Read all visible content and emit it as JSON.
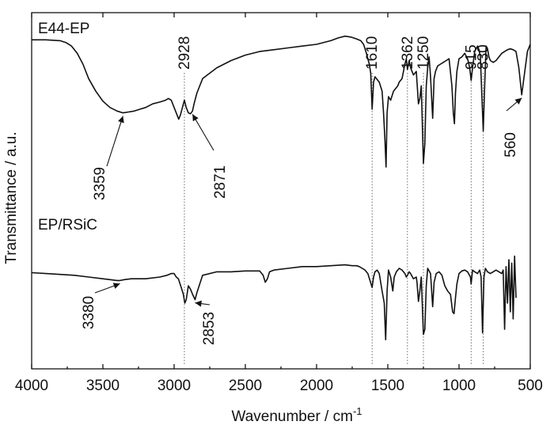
{
  "chart_data": {
    "type": "line",
    "xlabel": "Wavenumber / cm",
    "xlabel_sup": "-1",
    "ylabel": "Transmittance / a.u.",
    "xlim": [
      4000,
      500
    ],
    "x_reversed": true,
    "x_ticks": [
      4000,
      3500,
      3000,
      2500,
      2000,
      1500,
      1000,
      500
    ],
    "ylim": [
      0,
      1
    ],
    "y_ticks_shown": false,
    "series": [
      {
        "name": "E44-EP",
        "x": [
          4000,
          3900,
          3800,
          3760,
          3720,
          3680,
          3640,
          3600,
          3550,
          3500,
          3450,
          3400,
          3359,
          3320,
          3280,
          3240,
          3200,
          3150,
          3100,
          3060,
          3040,
          3020,
          3000,
          2980,
          2968,
          2955,
          2940,
          2928,
          2915,
          2900,
          2885,
          2871,
          2860,
          2840,
          2800,
          2700,
          2600,
          2500,
          2400,
          2300,
          2200,
          2100,
          2000,
          1900,
          1850,
          1800,
          1760,
          1720,
          1690,
          1670,
          1650,
          1630,
          1620,
          1610,
          1600,
          1590,
          1580,
          1560,
          1540,
          1530,
          1520,
          1512,
          1505,
          1495,
          1480,
          1460,
          1440,
          1430,
          1420,
          1400,
          1380,
          1370,
          1362,
          1350,
          1340,
          1320,
          1300,
          1295,
          1285,
          1275,
          1265,
          1250,
          1240,
          1230,
          1220,
          1210,
          1200,
          1185,
          1175,
          1165,
          1150,
          1130,
          1110,
          1090,
          1070,
          1050,
          1040,
          1032,
          1025,
          1015,
          1000,
          980,
          960,
          940,
          925,
          915,
          905,
          890,
          870,
          860,
          850,
          840,
          830,
          820,
          810,
          800,
          790,
          780,
          760,
          740,
          720,
          700,
          680,
          660,
          640,
          620,
          600,
          580,
          560,
          540,
          520,
          500
        ],
        "y": [
          0.955,
          0.955,
          0.95,
          0.94,
          0.92,
          0.88,
          0.82,
          0.74,
          0.67,
          0.615,
          0.58,
          0.56,
          0.55,
          0.555,
          0.56,
          0.57,
          0.58,
          0.6,
          0.61,
          0.62,
          0.63,
          0.62,
          0.58,
          0.54,
          0.515,
          0.54,
          0.585,
          0.62,
          0.58,
          0.55,
          0.545,
          0.56,
          0.6,
          0.66,
          0.74,
          0.8,
          0.84,
          0.87,
          0.89,
          0.9,
          0.91,
          0.92,
          0.93,
          0.95,
          0.965,
          0.975,
          0.97,
          0.96,
          0.95,
          0.93,
          0.88,
          0.82,
          0.77,
          0.57,
          0.72,
          0.75,
          0.74,
          0.72,
          0.67,
          0.55,
          0.4,
          0.25,
          0.55,
          0.64,
          0.62,
          0.67,
          0.69,
          0.7,
          0.72,
          0.74,
          0.82,
          0.85,
          0.79,
          0.84,
          0.8,
          0.76,
          0.78,
          0.72,
          0.6,
          0.63,
          0.7,
          0.27,
          0.38,
          0.7,
          0.8,
          0.86,
          0.75,
          0.52,
          0.74,
          0.78,
          0.81,
          0.82,
          0.83,
          0.84,
          0.85,
          0.7,
          0.55,
          0.49,
          0.66,
          0.78,
          0.85,
          0.86,
          0.88,
          0.85,
          0.8,
          0.73,
          0.8,
          0.89,
          0.92,
          0.9,
          0.86,
          0.65,
          0.45,
          0.7,
          0.92,
          0.905,
          0.86,
          0.84,
          0.83,
          0.84,
          0.86,
          0.88,
          0.89,
          0.9,
          0.905,
          0.9,
          0.89,
          0.8,
          0.65,
          0.77,
          0.89,
          0.93
        ]
      },
      {
        "name": "EP/RSiC",
        "x": [
          4000,
          3900,
          3800,
          3700,
          3600,
          3500,
          3450,
          3400,
          3380,
          3350,
          3300,
          3200,
          3100,
          3050,
          3020,
          3000,
          2985,
          2970,
          2950,
          2935,
          2925,
          2915,
          2900,
          2885,
          2870,
          2853,
          2840,
          2820,
          2800,
          2700,
          2600,
          2500,
          2400,
          2375,
          2360,
          2345,
          2330,
          2300,
          2200,
          2100,
          2000,
          1900,
          1800,
          1750,
          1720,
          1700,
          1680,
          1660,
          1640,
          1625,
          1610,
          1600,
          1590,
          1575,
          1560,
          1540,
          1525,
          1515,
          1510,
          1505,
          1495,
          1480,
          1465,
          1455,
          1440,
          1420,
          1400,
          1380,
          1370,
          1362,
          1350,
          1340,
          1320,
          1300,
          1295,
          1285,
          1275,
          1265,
          1250,
          1240,
          1230,
          1220,
          1200,
          1185,
          1175,
          1160,
          1140,
          1120,
          1100,
          1080,
          1060,
          1045,
          1035,
          1025,
          1015,
          1000,
          980,
          960,
          940,
          920,
          915,
          905,
          890,
          870,
          855,
          845,
          835,
          830,
          825,
          815,
          800,
          780,
          760,
          740,
          720,
          700,
          690,
          680,
          670,
          660,
          650,
          640,
          630,
          620,
          610,
          600
        ],
        "y": [
          0.525,
          0.52,
          0.515,
          0.51,
          0.5,
          0.49,
          0.485,
          0.48,
          0.48,
          0.485,
          0.49,
          0.49,
          0.5,
          0.51,
          0.52,
          0.52,
          0.5,
          0.49,
          0.44,
          0.4,
          0.35,
          0.37,
          0.45,
          0.43,
          0.4,
          0.37,
          0.41,
          0.46,
          0.51,
          0.53,
          0.53,
          0.535,
          0.535,
          0.51,
          0.47,
          0.49,
          0.53,
          0.54,
          0.55,
          0.56,
          0.56,
          0.565,
          0.57,
          0.565,
          0.565,
          0.56,
          0.55,
          0.54,
          0.52,
          0.48,
          0.44,
          0.5,
          0.53,
          0.54,
          0.52,
          0.42,
          0.35,
          0.14,
          0.27,
          0.42,
          0.54,
          0.5,
          0.42,
          0.5,
          0.53,
          0.55,
          0.54,
          0.52,
          0.5,
          0.51,
          0.53,
          0.52,
          0.49,
          0.5,
          0.47,
          0.36,
          0.42,
          0.5,
          0.17,
          0.2,
          0.45,
          0.55,
          0.52,
          0.33,
          0.47,
          0.52,
          0.53,
          0.51,
          0.45,
          0.42,
          0.4,
          0.3,
          0.29,
          0.38,
          0.46,
          0.52,
          0.535,
          0.54,
          0.53,
          0.5,
          0.46,
          0.54,
          0.53,
          0.52,
          0.54,
          0.5,
          0.18,
          0.34,
          0.5,
          0.55,
          0.53,
          0.52,
          0.53,
          0.54,
          0.53,
          0.52,
          0.54,
          0.2,
          0.56,
          0.35,
          0.6,
          0.3,
          0.58,
          0.26,
          0.62,
          0.38
        ]
      }
    ],
    "reference_lines": [
      2928,
      1610,
      1362,
      1250,
      915,
      830
    ],
    "annotations": [
      {
        "text": "2928",
        "x": 2928,
        "kind": "top",
        "orient": "vertical"
      },
      {
        "text": "1610",
        "x": 1610,
        "kind": "top",
        "orient": "vertical"
      },
      {
        "text": "1362",
        "x": 1362,
        "kind": "top",
        "orient": "vertical"
      },
      {
        "text": "1250",
        "x": 1250,
        "kind": "top",
        "orient": "vertical"
      },
      {
        "text": "915",
        "x": 915,
        "kind": "top",
        "orient": "vertical"
      },
      {
        "text": "830",
        "x": 830,
        "kind": "top",
        "orient": "vertical"
      },
      {
        "text": "3359",
        "x": 3359,
        "series": "E44-EP",
        "orient": "vertical",
        "arrow": true
      },
      {
        "text": "2871",
        "x": 2871,
        "series": "E44-EP",
        "orient": "vertical",
        "arrow": true
      },
      {
        "text": "560",
        "x": 560,
        "series": "E44-EP",
        "orient": "vertical",
        "arrow": true
      },
      {
        "text": "3380",
        "x": 3380,
        "series": "EP/RSiC",
        "orient": "vertical",
        "arrow": true
      },
      {
        "text": "2853",
        "x": 2853,
        "series": "EP/RSiC",
        "orient": "vertical",
        "arrow": true
      }
    ],
    "legend": "inline-labels"
  }
}
